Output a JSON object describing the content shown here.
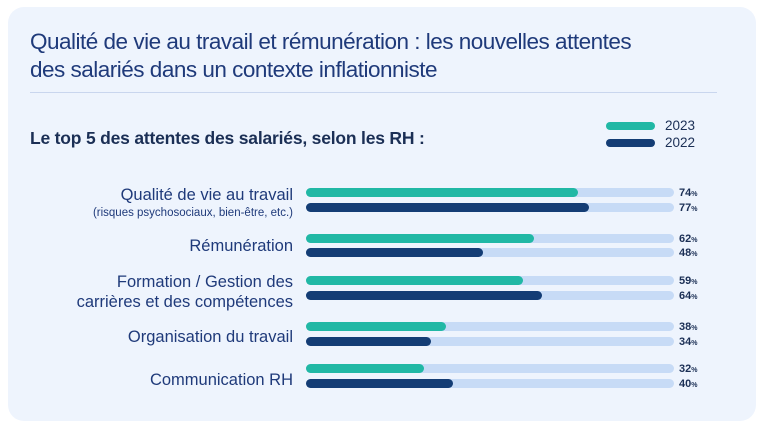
{
  "title": "Qualité de vie au travail et rémunération : les nouvelles attentes des salariés dans un contexte inflationniste",
  "colors": {
    "2023": "#21b8a5",
    "2022": "#143d75",
    "track": "#c7dbf6"
  },
  "chart_data": {
    "type": "bar",
    "orientation": "horizontal",
    "title": "Le top 5 des attentes des salariés, selon les RH :",
    "categories": [
      "Qualité de vie au travail",
      "Rémunération",
      "Formation / Gestion des carrières et des compétences",
      "Organisation du travail",
      "Communication RH"
    ],
    "category_notes": [
      "(risques psychosociaux, bien-être, etc.)",
      "",
      "",
      "",
      ""
    ],
    "series": [
      {
        "name": "2023",
        "values": [
          74,
          62,
          59,
          38,
          32
        ]
      },
      {
        "name": "2022",
        "values": [
          77,
          48,
          64,
          34,
          40
        ]
      }
    ],
    "unit": "%",
    "xlim": [
      0,
      100
    ],
    "legend": "top-right"
  },
  "rows": [
    {
      "label_lines": [
        "Qualité de vie au travail"
      ],
      "note": "(risques psychosociaux, bien-être, etc.)"
    },
    {
      "label_lines": [
        "Rémunération"
      ],
      "note": ""
    },
    {
      "label_lines": [
        "Formation / Gestion des",
        "carrières et des compétences"
      ],
      "note": ""
    },
    {
      "label_lines": [
        "Organisation du travail"
      ],
      "note": ""
    },
    {
      "label_lines": [
        "Communication RH"
      ],
      "note": ""
    }
  ]
}
